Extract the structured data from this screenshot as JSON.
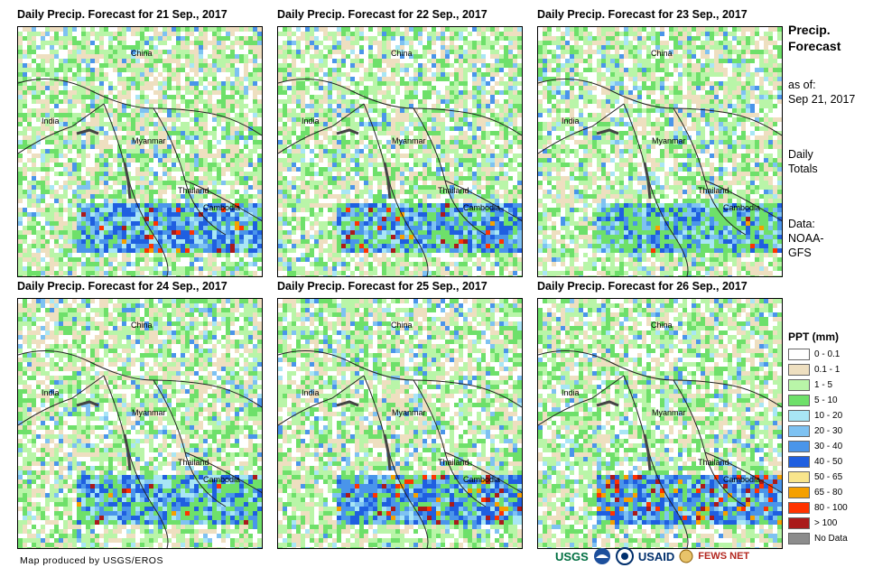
{
  "panels": [
    {
      "title": "Daily Precip. Forecast for 21 Sep., 2017",
      "labels": {
        "china": "China",
        "india": "India",
        "myanmar": "Myanmar",
        "thailand": "Thailand",
        "cambodia": "Cambodia"
      },
      "intensity": [
        0.85,
        0.55,
        0.2
      ]
    },
    {
      "title": "Daily Precip. Forecast for 22 Sep., 2017",
      "labels": {
        "china": "China",
        "india": "India",
        "myanmar": "Myanmar",
        "thailand": "Thailand",
        "cambodia": "Cambodia"
      },
      "intensity": [
        0.7,
        0.45,
        0.15
      ]
    },
    {
      "title": "Daily Precip. Forecast for 23 Sep., 2017",
      "labels": {
        "china": "China",
        "india": "India",
        "myanmar": "Myanmar",
        "thailand": "Thailand",
        "cambodia": "Cambodia"
      },
      "intensity": [
        0.6,
        0.35,
        0.05
      ]
    },
    {
      "title": "Daily Precip. Forecast for 24 Sep., 2017",
      "labels": {
        "china": "China",
        "india": "India",
        "myanmar": "Myanmar",
        "thailand": "Thailand",
        "cambodia": "Cambodia"
      },
      "intensity": [
        0.65,
        0.4,
        0.1
      ]
    },
    {
      "title": "Daily Precip. Forecast for 25 Sep., 2017",
      "labels": {
        "china": "China",
        "india": "India",
        "myanmar": "Myanmar",
        "thailand": "Thailand",
        "cambodia": "Cambodia"
      },
      "intensity": [
        0.8,
        0.6,
        0.35
      ]
    },
    {
      "title": "Daily Precip. Forecast for 26 Sep., 2017",
      "labels": {
        "china": "China",
        "india": "India",
        "myanmar": "Myanmar",
        "thailand": "Thailand",
        "cambodia": "Cambodia"
      },
      "intensity": [
        0.85,
        0.65,
        0.4
      ]
    }
  ],
  "side": {
    "heading_line1": "Precip.",
    "heading_line2": "Forecast",
    "asof_line1": "as of:",
    "asof_line2": "Sep 21, 2017",
    "totals_line1": "Daily",
    "totals_line2": "Totals",
    "data_line1": "Data:",
    "data_line2": "NOAA-",
    "data_line3": "GFS"
  },
  "legend": {
    "title": "PPT (mm)",
    "items": [
      {
        "label": "0 - 0.1",
        "color": "#ffffff"
      },
      {
        "label": "0.1 - 1",
        "color": "#eedfc0"
      },
      {
        "label": "1 - 5",
        "color": "#b9f5a8"
      },
      {
        "label": "5 - 10",
        "color": "#6ee06a"
      },
      {
        "label": "10 - 20",
        "color": "#a8e6f5"
      },
      {
        "label": "20 - 30",
        "color": "#7ec2f2"
      },
      {
        "label": "30 - 40",
        "color": "#4a95ea"
      },
      {
        "label": "40 - 50",
        "color": "#1f5fe0"
      },
      {
        "label": "50 - 65",
        "color": "#f8e58c"
      },
      {
        "label": "65 - 80",
        "color": "#f5a000"
      },
      {
        "label": "80 - 100",
        "color": "#ff3300"
      },
      {
        "label": "> 100",
        "color": "#aa1a1a"
      },
      {
        "label": "No Data",
        "color": "#8c8c8c"
      }
    ]
  },
  "credit": "Map produced by USGS/EROS",
  "logos": {
    "usgs": "USGS",
    "usaid": "USAID",
    "fewsnet": "FEWS NET"
  }
}
